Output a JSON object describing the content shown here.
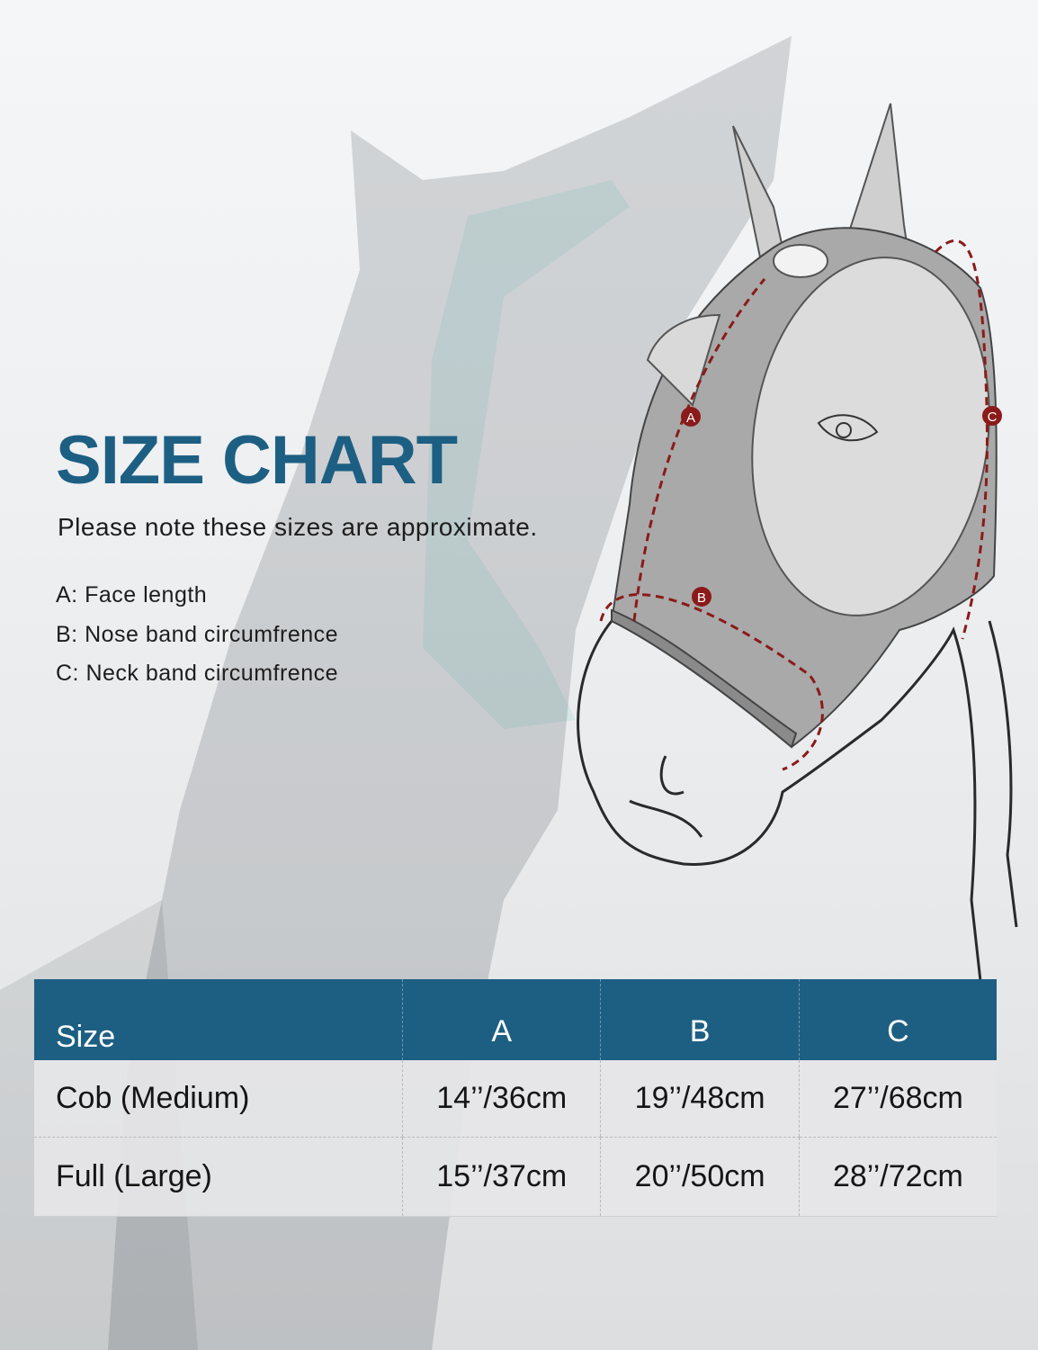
{
  "title": "SIZE CHART",
  "note": "Please note these sizes are approximate.",
  "legend": [
    "A: Face length",
    "B: Nose band circumfrence",
    "C: Neck band circumfrence"
  ],
  "diagram": {
    "markers": [
      "A",
      "B",
      "C"
    ],
    "marker_color": "#8b1a1a",
    "mask_color": "#a9a9a9"
  },
  "table": {
    "headers": [
      "Size",
      "A",
      "B",
      "C"
    ],
    "rows": [
      [
        "Cob (Medium)",
        "14’’/36cm",
        "19’’/48cm",
        "27’’/68cm"
      ],
      [
        "Full (Large)",
        "15’’/37cm",
        "20’’/50cm",
        "28’’/72cm"
      ]
    ],
    "header_color": "#1d5f83"
  }
}
